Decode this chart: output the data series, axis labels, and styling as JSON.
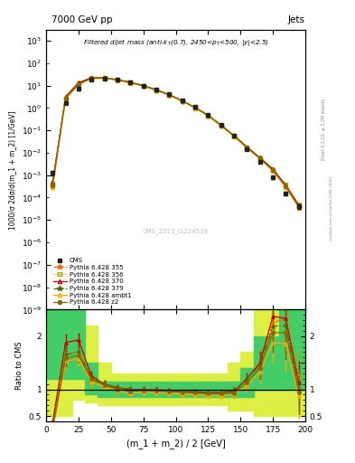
{
  "title_top": "7000 GeV pp",
  "title_right": "Jets",
  "xlabel": "(m_1 + m_2) / 2 [GeV]",
  "ylabel_main": "1000/σ 2dσ/d(m_1 + m_2) [1/GeV]",
  "ylabel_ratio": "Ratio to CMS",
  "watermark": "CMS_2013_I1224539",
  "x_data": [
    5,
    15,
    25,
    35,
    45,
    55,
    65,
    75,
    85,
    95,
    105,
    115,
    125,
    135,
    145,
    155,
    165,
    175,
    185,
    195
  ],
  "cms_y": [
    0.0013,
    1.7,
    7.0,
    18.0,
    20.0,
    18.0,
    14.0,
    10.0,
    6.5,
    4.0,
    2.2,
    1.1,
    0.5,
    0.18,
    0.06,
    0.015,
    0.004,
    0.0008,
    0.00015,
    4e-05
  ],
  "cms_yerr": [
    0.0003,
    0.25,
    0.7,
    1.5,
    1.5,
    1.2,
    0.9,
    0.7,
    0.45,
    0.28,
    0.14,
    0.07,
    0.028,
    0.01,
    0.004,
    0.0015,
    0.0004,
    0.00012,
    2.5e-05,
    8e-06
  ],
  "p355_y": [
    0.0003,
    2.8,
    12.0,
    22.0,
    22.0,
    18.5,
    14.0,
    10.0,
    6.5,
    3.9,
    2.1,
    1.05,
    0.47,
    0.17,
    0.058,
    0.018,
    0.006,
    0.0018,
    0.00035,
    4e-05
  ],
  "p356_y": [
    0.0004,
    2.7,
    11.5,
    21.0,
    21.5,
    18.0,
    13.5,
    9.8,
    6.3,
    3.8,
    2.05,
    1.02,
    0.46,
    0.165,
    0.057,
    0.017,
    0.0057,
    0.0017,
    0.0004,
    5e-05
  ],
  "p370_y": [
    0.0005,
    3.2,
    13.5,
    22.5,
    22.0,
    18.5,
    14.0,
    10.0,
    6.4,
    3.9,
    2.1,
    1.05,
    0.47,
    0.17,
    0.058,
    0.018,
    0.006,
    0.0019,
    0.00035,
    4.5e-05
  ],
  "p379_y": [
    0.0004,
    2.8,
    12.0,
    22.0,
    22.0,
    18.5,
    14.0,
    10.0,
    6.5,
    3.9,
    2.1,
    1.05,
    0.47,
    0.17,
    0.058,
    0.018,
    0.0058,
    0.00175,
    0.00033,
    4e-05
  ],
  "pambt1_y": [
    0.0003,
    2.6,
    11.0,
    20.5,
    21.0,
    17.5,
    13.0,
    9.5,
    6.1,
    3.7,
    2.0,
    0.99,
    0.44,
    0.158,
    0.054,
    0.016,
    0.0053,
    0.0015,
    0.00028,
    3.5e-05
  ],
  "pz2_y": [
    0.00035,
    2.7,
    11.5,
    21.5,
    21.5,
    18.0,
    13.5,
    9.8,
    6.3,
    3.85,
    2.08,
    1.03,
    0.46,
    0.165,
    0.056,
    0.017,
    0.0056,
    0.00165,
    0.00031,
    3.8e-05
  ],
  "ratio_355": [
    0.23,
    1.65,
    1.71,
    1.22,
    1.1,
    1.03,
    1.0,
    1.0,
    1.0,
    0.975,
    0.955,
    0.955,
    0.94,
    0.944,
    0.967,
    1.2,
    1.5,
    2.25,
    2.33,
    1.0
  ],
  "ratio_356": [
    0.31,
    1.59,
    1.64,
    1.17,
    1.075,
    1.0,
    0.964,
    0.98,
    0.969,
    0.95,
    0.932,
    0.927,
    0.92,
    0.917,
    0.95,
    1.13,
    1.425,
    2.125,
    2.67,
    1.25
  ],
  "ratio_370": [
    0.38,
    1.88,
    1.93,
    1.25,
    1.1,
    1.03,
    1.0,
    1.0,
    0.985,
    0.975,
    0.955,
    0.955,
    0.94,
    0.944,
    0.967,
    1.2,
    1.5,
    2.375,
    2.33,
    1.125
  ],
  "ratio_379": [
    0.31,
    1.65,
    1.71,
    1.22,
    1.1,
    1.03,
    1.0,
    1.0,
    1.0,
    0.975,
    0.955,
    0.955,
    0.94,
    0.944,
    0.967,
    1.2,
    1.45,
    2.1875,
    2.2,
    1.0
  ],
  "ratio_ambt1": [
    0.23,
    1.53,
    1.57,
    1.14,
    1.05,
    0.972,
    0.929,
    0.95,
    0.938,
    0.925,
    0.909,
    0.9,
    0.88,
    0.878,
    0.9,
    1.067,
    1.325,
    1.875,
    1.867,
    0.875
  ],
  "ratio_z2": [
    0.27,
    1.59,
    1.64,
    1.19,
    1.075,
    1.0,
    0.964,
    0.98,
    0.969,
    0.9625,
    0.945,
    0.936,
    0.92,
    0.917,
    0.933,
    1.133,
    1.4,
    2.0625,
    2.067,
    0.95
  ],
  "ratio_355_err": [
    0.05,
    0.15,
    0.12,
    0.08,
    0.06,
    0.05,
    0.04,
    0.04,
    0.04,
    0.04,
    0.04,
    0.04,
    0.04,
    0.05,
    0.06,
    0.1,
    0.2,
    0.35,
    0.5,
    0.4
  ],
  "ratio_356_err": [
    0.05,
    0.15,
    0.12,
    0.08,
    0.06,
    0.05,
    0.04,
    0.04,
    0.04,
    0.04,
    0.04,
    0.04,
    0.04,
    0.05,
    0.06,
    0.1,
    0.2,
    0.35,
    0.55,
    0.45
  ],
  "ratio_370_err": [
    0.05,
    0.15,
    0.12,
    0.08,
    0.06,
    0.05,
    0.04,
    0.04,
    0.04,
    0.04,
    0.04,
    0.04,
    0.04,
    0.05,
    0.06,
    0.1,
    0.2,
    0.35,
    0.5,
    0.4
  ],
  "ratio_379_err": [
    0.05,
    0.15,
    0.12,
    0.08,
    0.06,
    0.05,
    0.04,
    0.04,
    0.04,
    0.04,
    0.04,
    0.04,
    0.04,
    0.05,
    0.06,
    0.1,
    0.2,
    0.35,
    0.5,
    0.4
  ],
  "ratio_ambt1_err": [
    0.05,
    0.15,
    0.12,
    0.08,
    0.06,
    0.05,
    0.04,
    0.04,
    0.04,
    0.04,
    0.04,
    0.04,
    0.04,
    0.05,
    0.06,
    0.1,
    0.2,
    0.35,
    0.5,
    0.4
  ],
  "ratio_z2_err": [
    0.05,
    0.15,
    0.12,
    0.08,
    0.06,
    0.05,
    0.04,
    0.04,
    0.04,
    0.04,
    0.04,
    0.04,
    0.04,
    0.05,
    0.06,
    0.1,
    0.2,
    0.35,
    0.5,
    0.4
  ],
  "band_x": [
    0,
    10,
    20,
    30,
    40,
    50,
    60,
    70,
    80,
    90,
    100,
    110,
    120,
    130,
    140,
    150,
    160,
    170,
    180,
    190,
    200
  ],
  "band_inner_lo": [
    1.2,
    1.2,
    1.2,
    0.9,
    0.85,
    0.85,
    0.85,
    0.85,
    0.85,
    0.85,
    0.85,
    0.85,
    0.85,
    0.85,
    0.85,
    0.85,
    1.0,
    1.0,
    1.0,
    1.0,
    1.0
  ],
  "band_inner_hi": [
    2.5,
    2.5,
    2.5,
    1.5,
    1.15,
    1.15,
    1.15,
    1.15,
    1.15,
    1.15,
    1.15,
    1.15,
    1.15,
    1.15,
    1.15,
    1.4,
    2.0,
    2.0,
    2.5,
    2.5,
    2.5
  ],
  "band_outer_lo": [
    0.5,
    0.5,
    0.8,
    0.75,
    0.7,
    0.7,
    0.7,
    0.7,
    0.7,
    0.7,
    0.7,
    0.7,
    0.7,
    0.7,
    0.6,
    0.6,
    0.5,
    0.5,
    0.5,
    0.5,
    0.5
  ],
  "band_outer_hi": [
    2.5,
    2.5,
    2.5,
    2.2,
    1.5,
    1.3,
    1.3,
    1.3,
    1.3,
    1.3,
    1.3,
    1.3,
    1.3,
    1.3,
    1.5,
    1.7,
    2.5,
    2.5,
    2.5,
    2.5,
    2.5
  ],
  "color_cms": "#222222",
  "color_355": "#ff6600",
  "color_356": "#aaaa00",
  "color_370": "#cc0000",
  "color_379": "#556600",
  "color_ambt1": "#ffaa00",
  "color_z2": "#886600",
  "color_band_inner": "#44cc66",
  "color_band_outer": "#ddee44",
  "xlim": [
    0,
    200
  ],
  "ylim_main": [
    1e-09,
    3000.0
  ],
  "ylim_ratio": [
    0.4,
    2.5
  ]
}
